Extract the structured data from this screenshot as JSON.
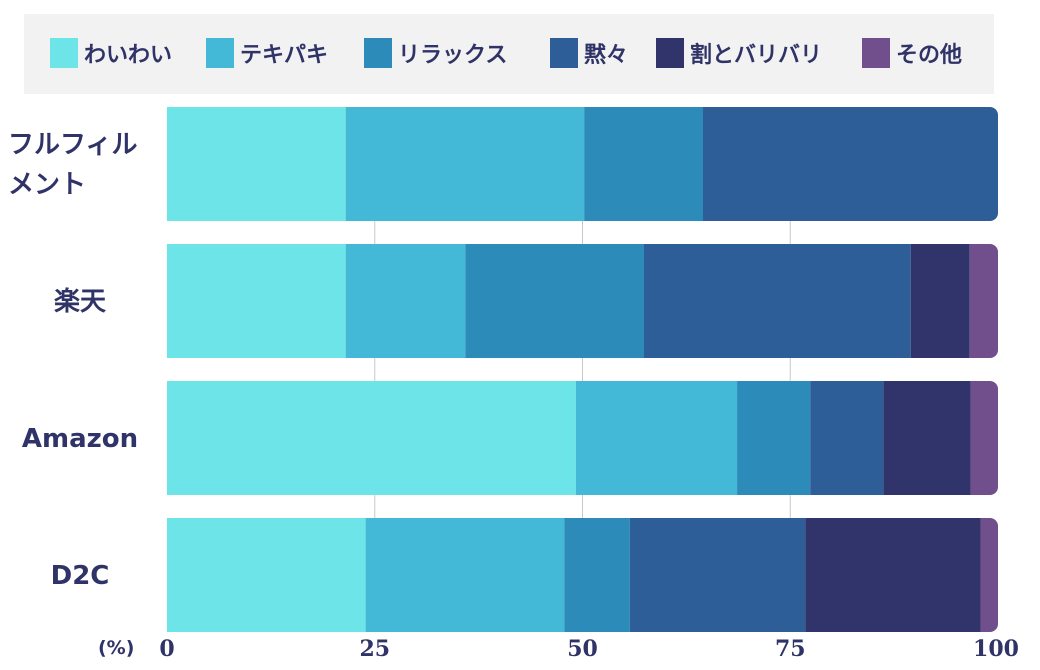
{
  "chart_data": {
    "type": "bar",
    "orientation": "horizontal",
    "stacked": true,
    "unit_label": "(%)",
    "xlim": [
      0,
      100
    ],
    "x_ticks": [
      0,
      25,
      50,
      75,
      100
    ],
    "grid": true,
    "legend_position": "top",
    "categories": [
      [
        "フルフィル",
        "メント"
      ],
      [
        "楽天"
      ],
      [
        "Amazon"
      ],
      [
        "D2C"
      ]
    ],
    "series": [
      {
        "name": "わいわい",
        "color": "#6ce4e8",
        "values": [
          21.5,
          21.5,
          49.2,
          23.9
        ]
      },
      {
        "name": "テキパキ",
        "color": "#43b8d7",
        "values": [
          28.7,
          14.4,
          19.4,
          23.9
        ]
      },
      {
        "name": "リラックス",
        "color": "#2d8bb9",
        "values": [
          14.3,
          21.5,
          8.8,
          7.9
        ]
      },
      {
        "name": "黙々",
        "color": "#2e5e98",
        "values": [
          35.5,
          32.1,
          8.8,
          21.1
        ]
      },
      {
        "name": "割とバリバリ",
        "color": "#30346b",
        "values": [
          0,
          7.1,
          10.5,
          21.1
        ]
      },
      {
        "name": "その他",
        "color": "#714e8c",
        "values": [
          0,
          3.4,
          3.3,
          2.1
        ]
      }
    ]
  }
}
